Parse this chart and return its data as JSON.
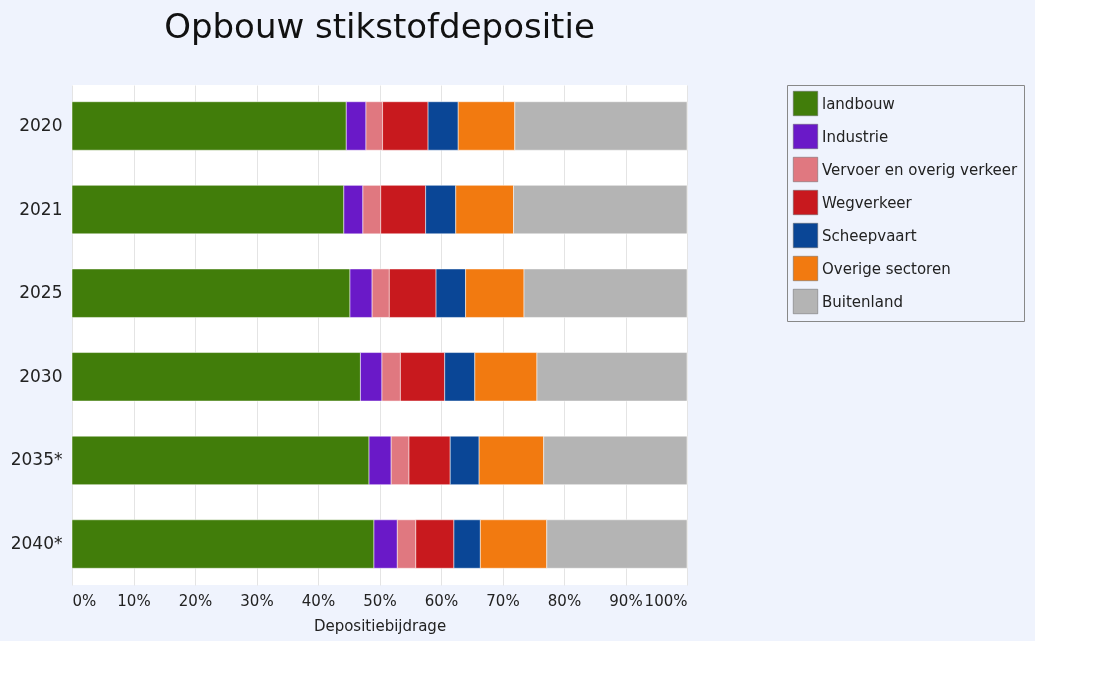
{
  "chart_data": {
    "type": "bar",
    "orientation": "horizontal",
    "stacked": true,
    "title": "Opbouw stikstofdepositie",
    "xlabel": "Depositiebijdrage",
    "categories": [
      "2020",
      "2021",
      "2025",
      "2030",
      "2035*",
      "2040*"
    ],
    "series": [
      {
        "name": "landbouw",
        "color": "#417d0a",
        "values": [
          44.6,
          44.2,
          45.2,
          46.9,
          48.3,
          49.1
        ]
      },
      {
        "name": "Industrie",
        "color": "#6a19c8",
        "values": [
          3.2,
          3.1,
          3.6,
          3.5,
          3.6,
          3.8
        ]
      },
      {
        "name": "Vervoer en overig verkeer",
        "color": "#e07880",
        "values": [
          2.7,
          2.9,
          2.8,
          3.0,
          2.9,
          3.0
        ]
      },
      {
        "name": "Wegverkeer",
        "color": "#c8191e",
        "values": [
          7.4,
          7.3,
          7.6,
          7.2,
          6.7,
          6.2
        ]
      },
      {
        "name": "Scheepvaart",
        "color": "#0a4696",
        "values": [
          4.9,
          4.9,
          4.8,
          4.9,
          4.7,
          4.3
        ]
      },
      {
        "name": "Overige sectoren",
        "color": "#f27a10",
        "values": [
          9.2,
          9.4,
          9.5,
          10.1,
          10.5,
          10.8
        ]
      },
      {
        "name": "Buitenland",
        "color": "#b4b4b4",
        "values": [
          28.0,
          28.2,
          26.5,
          24.4,
          23.3,
          22.8
        ]
      }
    ],
    "xlim": [
      0,
      100
    ],
    "xticks": [
      {
        "value": 0,
        "label": "0%"
      },
      {
        "value": 10,
        "label": "10%"
      },
      {
        "value": 20,
        "label": "20%"
      },
      {
        "value": 30,
        "label": "30%"
      },
      {
        "value": 40,
        "label": "40%"
      },
      {
        "value": 50,
        "label": "50%"
      },
      {
        "value": 60,
        "label": "60%"
      },
      {
        "value": 70,
        "label": "70%"
      },
      {
        "value": 80,
        "label": "80%"
      },
      {
        "value": 90,
        "label": "90%"
      },
      {
        "value": 100,
        "label": "100%"
      }
    ],
    "grid": "x",
    "legend": "right"
  }
}
